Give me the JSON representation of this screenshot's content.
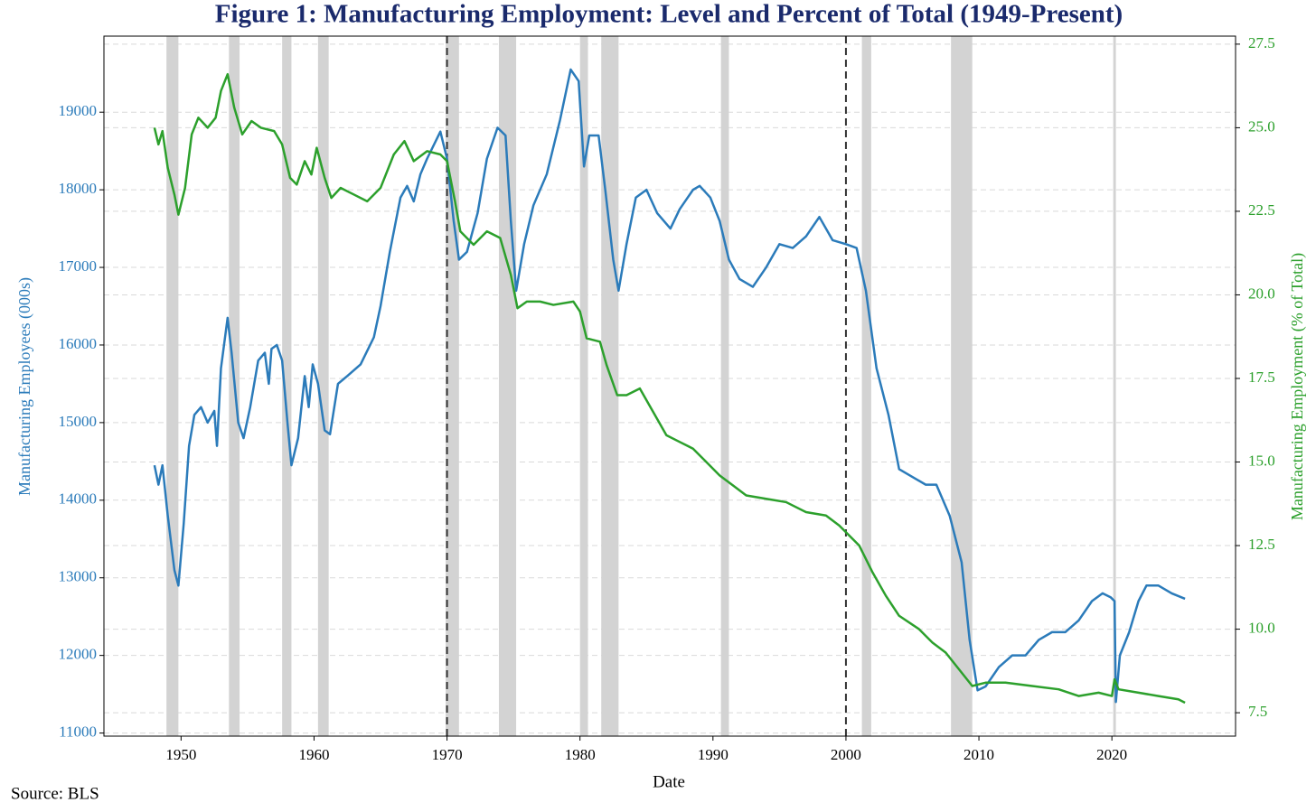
{
  "chart_data": {
    "type": "line",
    "title": "Figure 1: Manufacturing Employment: Level and Percent of Total (1949-Present)",
    "xlabel": "Date",
    "ylabel": "Manufacturing Employees (000s)",
    "y2label": "Manufacturing Employment (% of Total)",
    "source": "Source: BLS",
    "xlim": [
      1944.2,
      2029.3
    ],
    "xticks": [
      1950,
      1960,
      1970,
      1980,
      1990,
      2000,
      2010,
      2020
    ],
    "ylim": [
      10960,
      19980
    ],
    "yticks": [
      11000,
      12000,
      13000,
      14000,
      15000,
      16000,
      17000,
      18000,
      19000
    ],
    "y2lim": [
      6.8,
      27.74
    ],
    "y2ticks": [
      7.5,
      {
        "value": 10,
        "label": "10.0"
      },
      12.5,
      {
        "value": 15,
        "label": "15.0"
      },
      17.5,
      {
        "value": 20,
        "label": "20.0"
      },
      22.5,
      {
        "value": 25,
        "label": "25.0"
      },
      27.5
    ],
    "grid": true,
    "recessions": [
      [
        1948.9,
        1949.8
      ],
      [
        1953.6,
        1954.4
      ],
      [
        1957.6,
        1958.3
      ],
      [
        1960.3,
        1961.1
      ],
      [
        1969.9,
        1970.9
      ],
      [
        1973.9,
        1975.2
      ],
      [
        1980.0,
        1980.6
      ],
      [
        1981.6,
        1982.9
      ],
      [
        1990.6,
        1991.2
      ],
      [
        2001.2,
        2001.9
      ],
      [
        2007.9,
        2009.5
      ],
      [
        2020.1,
        2020.3
      ]
    ],
    "recession_color": "#d3d3d3",
    "vlines": [
      1970,
      2000
    ],
    "series": [
      {
        "color": "#2b7bba",
        "axis": "y",
        "x": [
          1948.0,
          1948.3,
          1948.6,
          1949.0,
          1949.5,
          1949.8,
          1950.2,
          1950.6,
          1951.0,
          1951.5,
          1952.0,
          1952.5,
          1952.7,
          1953.0,
          1953.5,
          1953.8,
          1954.3,
          1954.7,
          1955.2,
          1955.8,
          1956.3,
          1956.6,
          1956.8,
          1957.2,
          1957.6,
          1958.0,
          1958.3,
          1958.8,
          1959.3,
          1959.6,
          1959.9,
          1960.3,
          1960.8,
          1961.2,
          1961.8,
          1962.5,
          1963.5,
          1964.5,
          1965.0,
          1965.7,
          1966.5,
          1967.0,
          1967.5,
          1968.0,
          1968.5,
          1969.5,
          1970.0,
          1970.5,
          1970.9,
          1971.5,
          1972.3,
          1973.0,
          1973.8,
          1974.4,
          1974.8,
          1975.2,
          1975.8,
          1976.5,
          1977.5,
          1978.5,
          1979.3,
          1979.9,
          1980.3,
          1980.7,
          1981.4,
          1981.9,
          1982.5,
          1982.9,
          1983.5,
          1984.2,
          1985.0,
          1985.8,
          1986.8,
          1987.5,
          1988.5,
          1989.0,
          1989.8,
          1990.5,
          1991.2,
          1992.0,
          1993.0,
          1994.0,
          1995.0,
          1996.0,
          1997.0,
          1998.0,
          1999.0,
          2000.0,
          2000.8,
          2001.5,
          2002.3,
          2003.2,
          2004.0,
          2005.0,
          2006.0,
          2006.8,
          2007.8,
          2008.7,
          2009.3,
          2009.9,
          2010.5,
          2011.5,
          2012.5,
          2013.5,
          2014.5,
          2015.5,
          2016.5,
          2017.5,
          2018.5,
          2019.3,
          2019.9,
          2020.2,
          2020.3,
          2020.6,
          2021.3,
          2022.0,
          2022.6,
          2023.5,
          2024.5,
          2025.5
        ],
        "values": [
          14450,
          14200,
          14450,
          13800,
          13100,
          12900,
          13700,
          14700,
          15100,
          15200,
          15000,
          15150,
          14700,
          15700,
          16350,
          15900,
          15000,
          14800,
          15200,
          15800,
          15900,
          15500,
          15950,
          16000,
          15800,
          15000,
          14450,
          14800,
          15600,
          15200,
          15750,
          15500,
          14900,
          14850,
          15500,
          15600,
          15750,
          16100,
          16500,
          17200,
          17900,
          18050,
          17850,
          18200,
          18400,
          18750,
          18400,
          17600,
          17100,
          17200,
          17700,
          18400,
          18800,
          18700,
          17600,
          16700,
          17300,
          17800,
          18200,
          18900,
          19550,
          19400,
          18300,
          18700,
          18700,
          18000,
          17100,
          16700,
          17300,
          17900,
          18000,
          17700,
          17500,
          17750,
          18000,
          18050,
          17900,
          17600,
          17100,
          16850,
          16750,
          17000,
          17300,
          17250,
          17400,
          17650,
          17350,
          17300,
          17250,
          16700,
          15700,
          15100,
          14400,
          14300,
          14200,
          14200,
          13800,
          13200,
          12200,
          11550,
          11600,
          11850,
          12000,
          12000,
          12200,
          12300,
          12300,
          12450,
          12700,
          12800,
          12750,
          12700,
          11400,
          12000,
          12300,
          12700,
          12900,
          12900,
          12800,
          12730
        ]
      },
      {
        "color": "#2ca02c",
        "axis": "y2",
        "x": [
          1948.0,
          1948.3,
          1948.6,
          1949.0,
          1949.5,
          1949.8,
          1950.3,
          1950.8,
          1951.3,
          1952.0,
          1952.6,
          1953.0,
          1953.5,
          1954.0,
          1954.6,
          1955.3,
          1956.0,
          1957.0,
          1957.6,
          1958.2,
          1958.7,
          1959.3,
          1959.8,
          1960.2,
          1960.8,
          1961.3,
          1962.0,
          1963.0,
          1964.0,
          1965.0,
          1966.0,
          1966.8,
          1967.5,
          1968.5,
          1969.5,
          1970.0,
          1970.6,
          1971.0,
          1972.0,
          1973.0,
          1974.0,
          1974.8,
          1975.3,
          1976.0,
          1977.0,
          1978.0,
          1979.5,
          1980.0,
          1980.5,
          1981.5,
          1982.0,
          1982.8,
          1983.5,
          1984.5,
          1985.5,
          1986.5,
          1987.5,
          1988.5,
          1989.5,
          1990.5,
          1991.5,
          1992.5,
          1994.0,
          1995.5,
          1997.0,
          1998.5,
          1999.5,
          2000.0,
          2001.0,
          2002.0,
          2003.0,
          2004.0,
          2005.5,
          2006.5,
          2007.5,
          2008.5,
          2009.5,
          2010.5,
          2012.0,
          2014.0,
          2016.0,
          2017.5,
          2019.0,
          2020.0,
          2020.2,
          2020.5,
          2022.0,
          2023.5,
          2025.0,
          2025.5
        ],
        "values": [
          25.0,
          24.5,
          24.9,
          23.8,
          23.0,
          22.4,
          23.2,
          24.8,
          25.3,
          25.0,
          25.3,
          26.1,
          26.6,
          25.6,
          24.8,
          25.2,
          25.0,
          24.9,
          24.5,
          23.5,
          23.3,
          24.0,
          23.6,
          24.4,
          23.5,
          22.9,
          23.2,
          23.0,
          22.8,
          23.2,
          24.2,
          24.6,
          24.0,
          24.3,
          24.2,
          24.0,
          22.8,
          21.9,
          21.5,
          21.9,
          21.7,
          20.6,
          19.6,
          19.8,
          19.8,
          19.7,
          19.8,
          19.5,
          18.7,
          18.6,
          17.9,
          17.0,
          17.0,
          17.2,
          16.5,
          15.8,
          15.6,
          15.4,
          15.0,
          14.6,
          14.3,
          14.0,
          13.9,
          13.8,
          13.5,
          13.4,
          13.1,
          12.9,
          12.5,
          11.7,
          11.0,
          10.4,
          10.0,
          9.6,
          9.3,
          8.8,
          8.3,
          8.4,
          8.4,
          8.3,
          8.2,
          8.0,
          8.1,
          8.0,
          8.5,
          8.2,
          8.1,
          8.0,
          7.9,
          7.8
        ]
      }
    ]
  }
}
